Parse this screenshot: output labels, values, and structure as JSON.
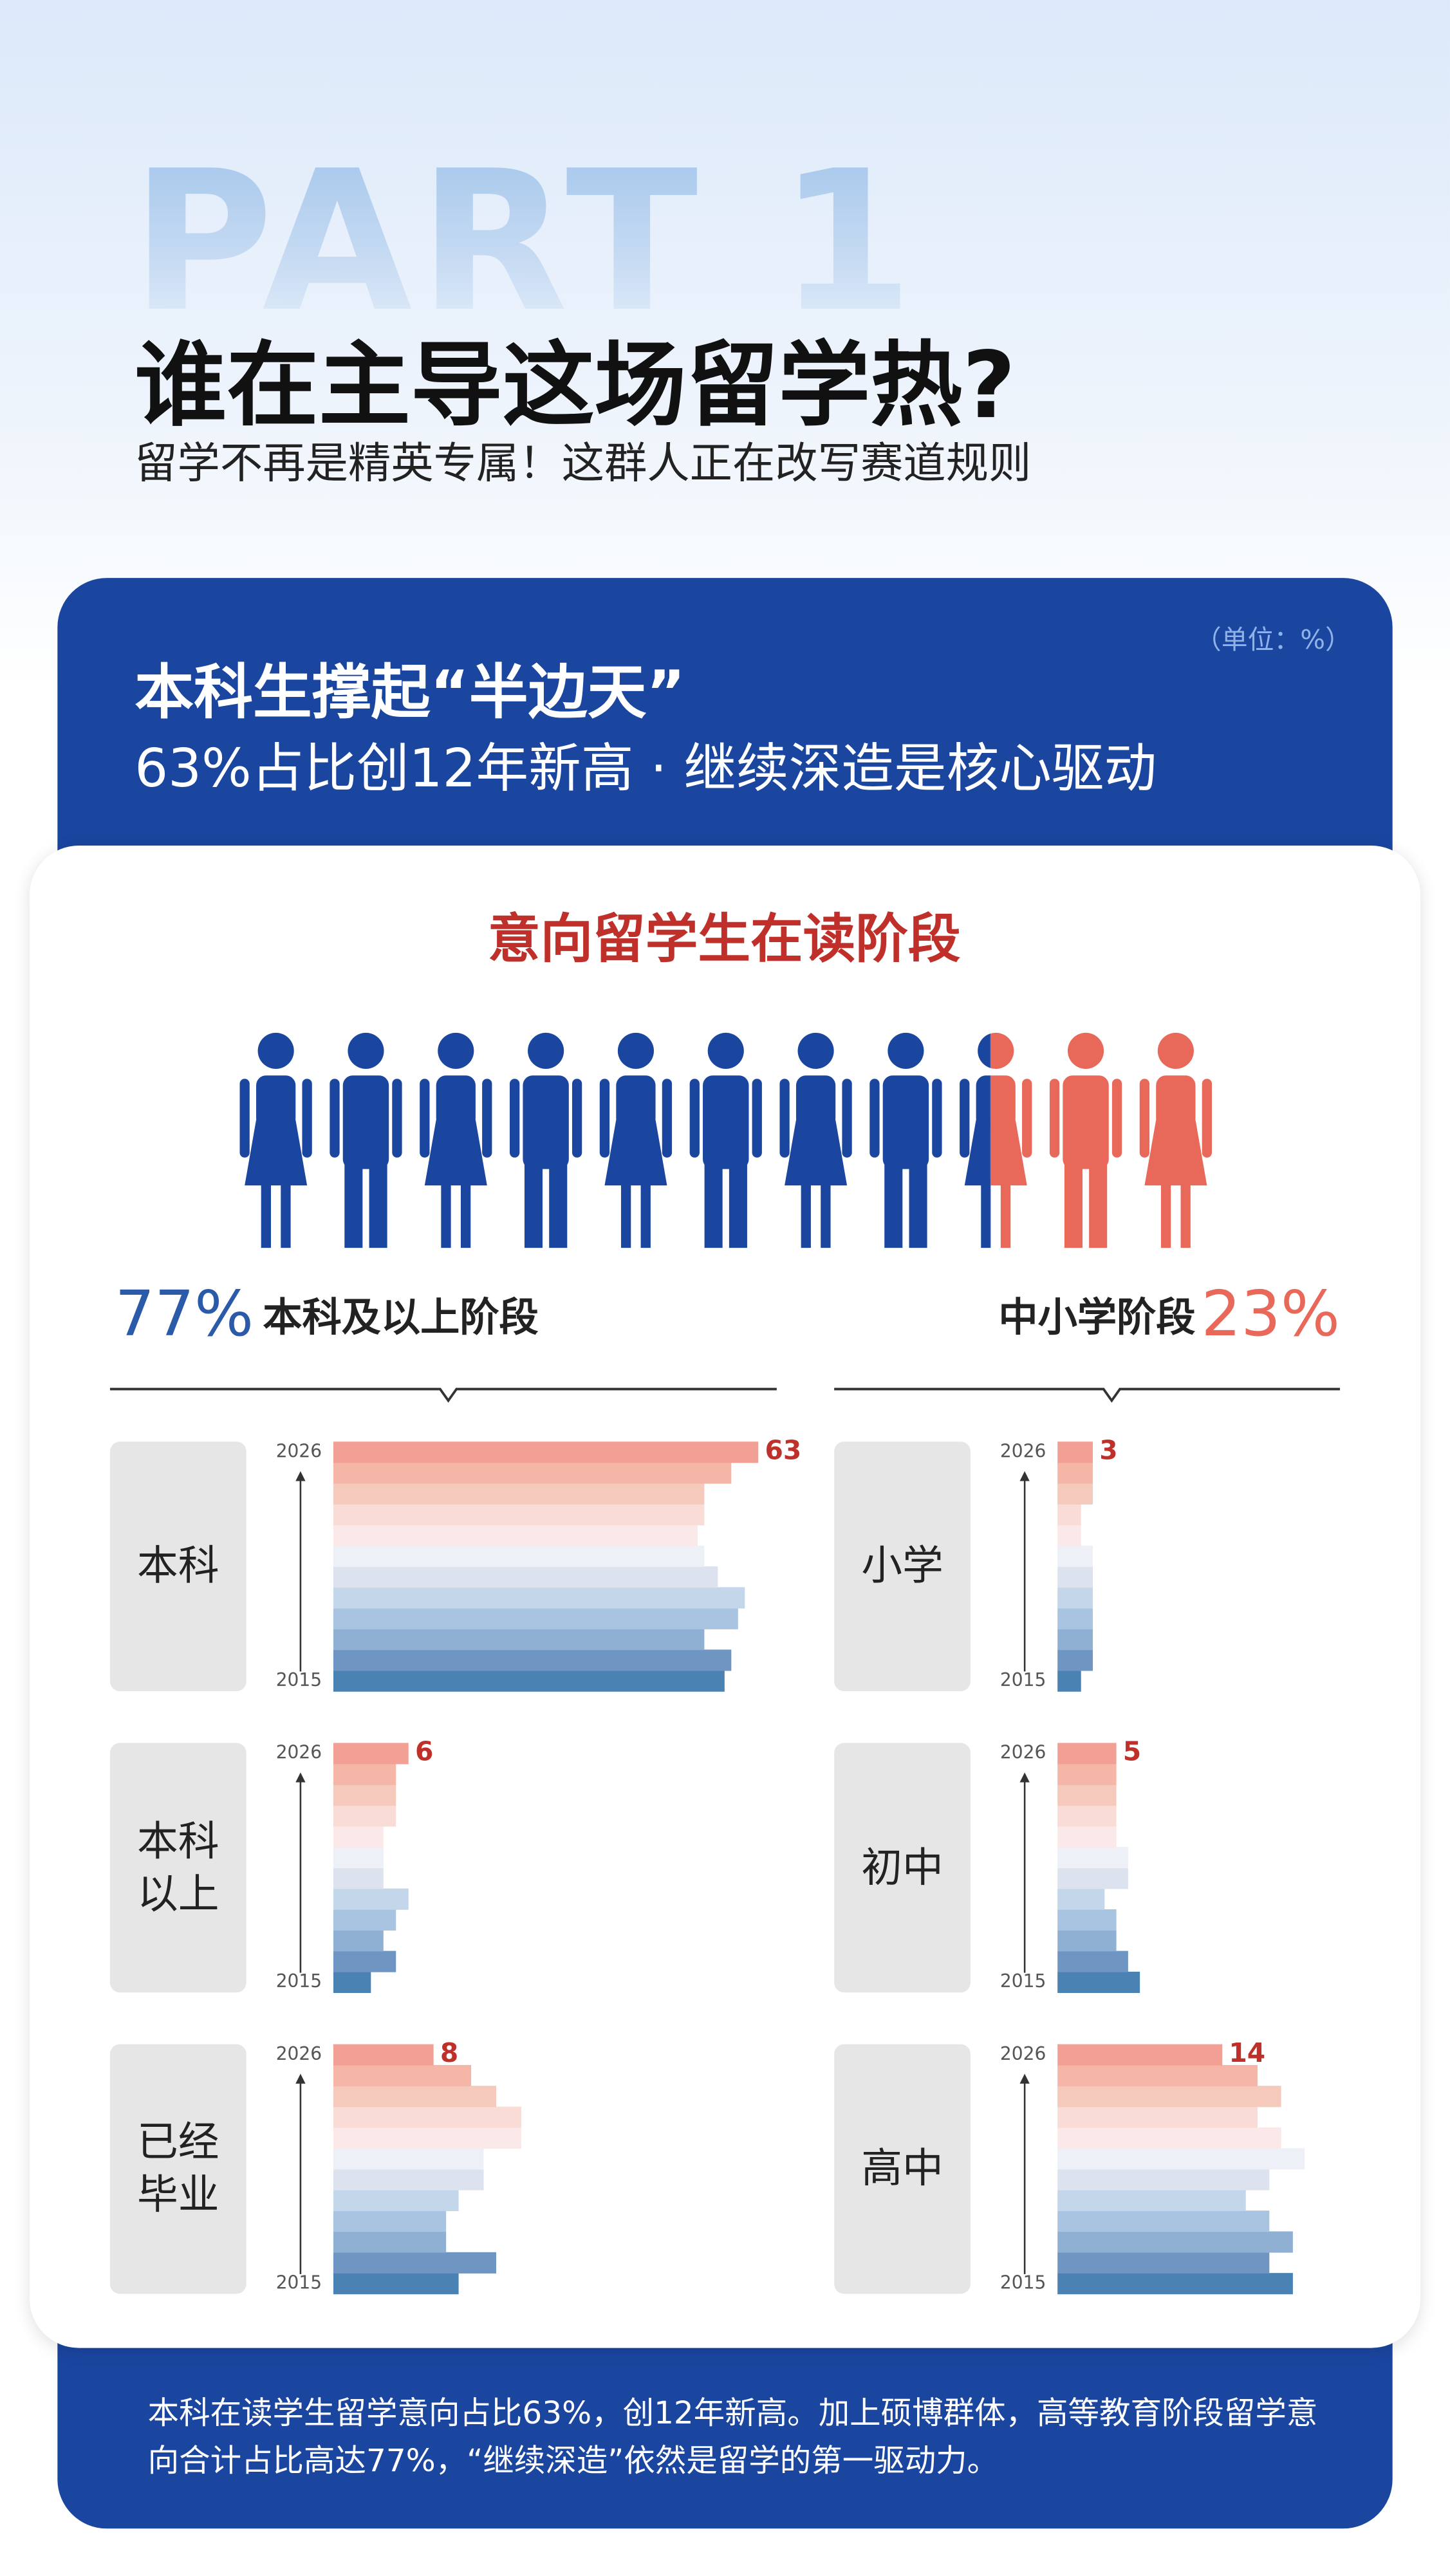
{
  "header": {
    "part": "PART 1",
    "title": "谁在主导这场留学热?",
    "subtitle": "留学不再是精英专属！这群人正在改写赛道规则"
  },
  "card": {
    "unit": "（单位：%）",
    "title": "本科生撑起“半边天”",
    "subtitle": "63%占比创12年新高 · 继续深造是核心驱动",
    "section_title": "意向留学生在读阶段",
    "groups": [
      {
        "name": "本科及以上阶段",
        "share": {
          "value": 77,
          "label": "77%"
        },
        "color": "#1b46a0"
      },
      {
        "name": "中小学阶段",
        "share": {
          "value": 23,
          "label": "23%"
        },
        "color": "#e8685a"
      }
    ]
  },
  "bar_colors": [
    "#4a82b4",
    "#6f95c3",
    "#8fb0d3",
    "#a9c4e0",
    "#c3d6ea",
    "#dce3ef",
    "#eef0f7",
    "#fbe9ea",
    "#f9dcd6",
    "#f6c9bd",
    "#f5b5a7",
    "#f29f95"
  ],
  "chart_data": [
    {
      "type": "bar",
      "orientation": "horizontal",
      "title": "本科",
      "categories": [
        "2015",
        null,
        null,
        null,
        null,
        null,
        null,
        null,
        null,
        null,
        null,
        "2026"
      ],
      "values": [
        58,
        59,
        55,
        60,
        61,
        57,
        55,
        54,
        55,
        55,
        59,
        63
      ],
      "xlim": [
        0,
        65
      ]
    },
    {
      "type": "bar",
      "orientation": "horizontal",
      "title": "本科以上",
      "categories": [
        "2015",
        null,
        null,
        null,
        null,
        null,
        null,
        null,
        null,
        null,
        null,
        "2026"
      ],
      "values": [
        3,
        5,
        4,
        5,
        6,
        4,
        4,
        4,
        5,
        5,
        5,
        6
      ],
      "xlim": [
        0,
        35
      ]
    },
    {
      "type": "bar",
      "orientation": "horizontal",
      "title": "已经毕业",
      "categories": [
        "2015",
        null,
        null,
        null,
        null,
        null,
        null,
        null,
        null,
        null,
        null,
        "2026"
      ],
      "values": [
        10,
        13,
        9,
        9,
        10,
        12,
        12,
        15,
        15,
        13,
        11,
        8
      ],
      "xlim": [
        0,
        35
      ]
    },
    {
      "type": "bar",
      "orientation": "horizontal",
      "title": "小学",
      "categories": [
        "2015",
        null,
        null,
        null,
        null,
        null,
        null,
        null,
        null,
        null,
        null,
        "2026"
      ],
      "values": [
        2,
        3,
        3,
        3,
        3,
        3,
        3,
        2,
        2,
        3,
        3,
        3
      ],
      "xlim": [
        0,
        24
      ]
    },
    {
      "type": "bar",
      "orientation": "horizontal",
      "title": "初中",
      "categories": [
        "2015",
        null,
        null,
        null,
        null,
        null,
        null,
        null,
        null,
        null,
        null,
        "2026"
      ],
      "values": [
        7,
        6,
        5,
        5,
        4,
        6,
        6,
        5,
        5,
        5,
        5,
        5
      ],
      "xlim": [
        0,
        24
      ]
    },
    {
      "type": "bar",
      "orientation": "horizontal",
      "title": "高中",
      "categories": [
        "2015",
        null,
        null,
        null,
        null,
        null,
        null,
        null,
        null,
        null,
        null,
        "2026"
      ],
      "values": [
        20,
        18,
        20,
        18,
        16,
        18,
        21,
        19,
        17,
        19,
        17,
        14
      ],
      "xlim": [
        0,
        24
      ]
    }
  ],
  "footer": {
    "text": "本科在读学生留学意向占比63%，创12年新高。加上硕博群体，高等教育阶段留学意向合计占比高达77%，“继续深造”依然是留学的第一驱动力。"
  }
}
